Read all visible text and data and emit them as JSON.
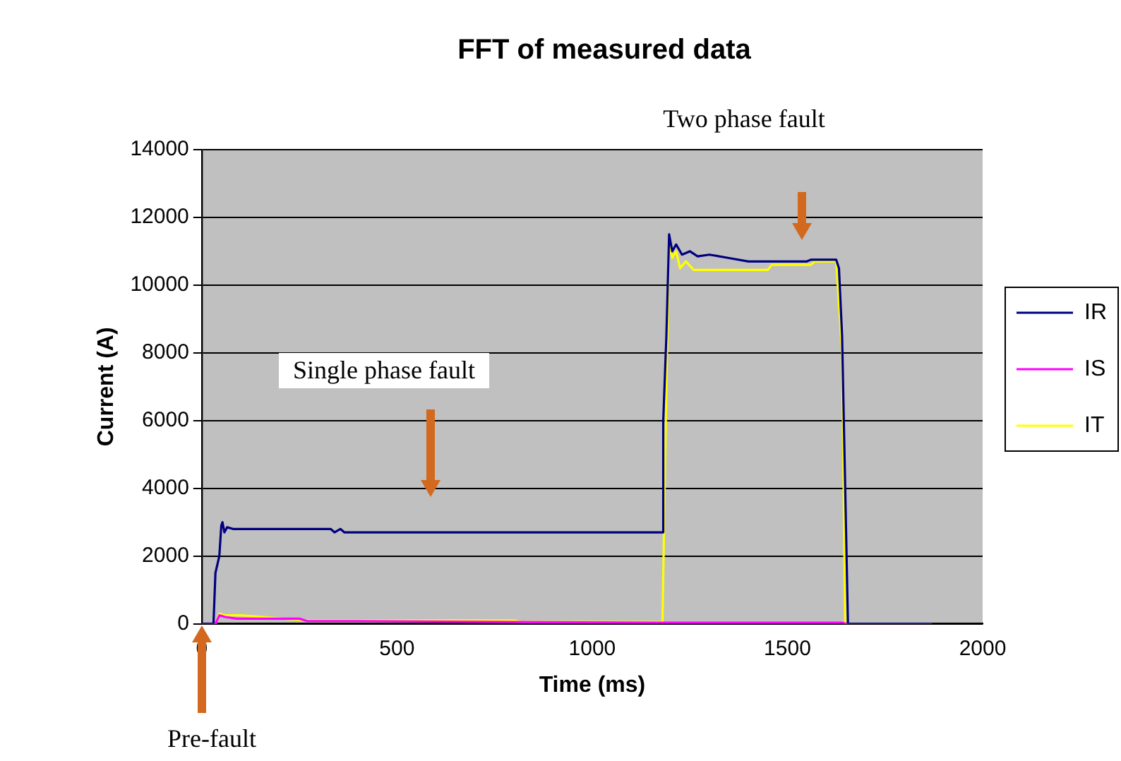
{
  "chart_data": {
    "type": "line",
    "title": "FFT of measured data",
    "xlabel": "Time (ms)",
    "ylabel": "Current (A)",
    "xlim": [
      0,
      2000
    ],
    "xticks": [
      0,
      500,
      1000,
      1500,
      2000
    ],
    "ylim": [
      0,
      14000
    ],
    "yticks": [
      0,
      2000,
      4000,
      6000,
      8000,
      10000,
      12000,
      14000
    ],
    "grid": "y",
    "legend": "right",
    "marker": "none",
    "line_style": "solid",
    "series": [
      {
        "name": "IR",
        "color": "#000080",
        "x": [
          0,
          30,
          35,
          45,
          50,
          53,
          58,
          65,
          80,
          330,
          340,
          355,
          365,
          1180,
          1182,
          1190,
          1197,
          1205,
          1215,
          1230,
          1250,
          1270,
          1300,
          1350,
          1400,
          1550,
          1560,
          1625,
          1632,
          1640,
          1648,
          1655,
          1870
        ],
        "values": [
          0,
          0,
          1500,
          2000,
          2900,
          3000,
          2700,
          2850,
          2800,
          2800,
          2700,
          2800,
          2700,
          2700,
          6000,
          8500,
          11500,
          11000,
          11200,
          10900,
          11000,
          10850,
          10900,
          10800,
          10700,
          10700,
          10750,
          10750,
          10500,
          8500,
          4000,
          0,
          0
        ]
      },
      {
        "name": "IS",
        "color": "#ff00ff",
        "x": [
          0,
          35,
          45,
          60,
          90,
          250,
          270,
          400,
          800,
          1180,
          1640,
          1650,
          1870
        ],
        "values": [
          0,
          0,
          250,
          200,
          150,
          150,
          80,
          80,
          50,
          30,
          30,
          0,
          0
        ]
      },
      {
        "name": "IT",
        "color": "#ffff00",
        "x": [
          0,
          35,
          45,
          60,
          100,
          270,
          800,
          820,
          1180,
          1190,
          1197,
          1205,
          1215,
          1225,
          1240,
          1260,
          1450,
          1460,
          1560,
          1570,
          1625,
          1640,
          1648,
          1870
        ],
        "values": [
          0,
          0,
          300,
          250,
          250,
          100,
          100,
          50,
          50,
          7000,
          11300,
          10800,
          11000,
          10500,
          10700,
          10450,
          10450,
          10600,
          10600,
          10700,
          10700,
          8000,
          0,
          0
        ]
      }
    ],
    "annotations": [
      "Two phase fault",
      "Single phase fault",
      "Pre-fault"
    ]
  }
}
